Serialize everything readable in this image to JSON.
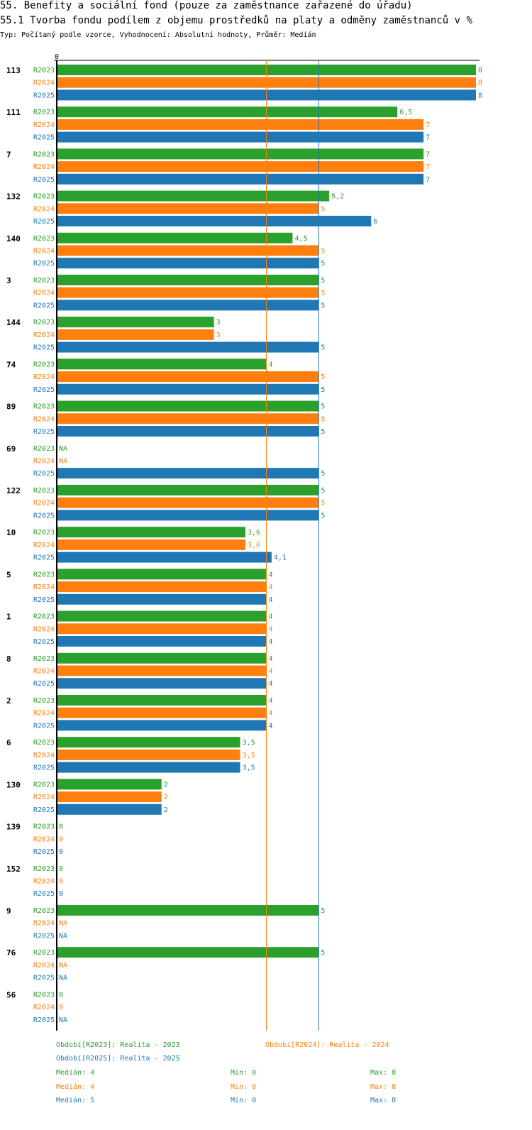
{
  "header": {
    "title": "55. Benefity a sociální fond (pouze za zaměstnance zařazené do úřadu)",
    "subtitle": "55.1 Tvorba fondu podílem z objemu prostředků na platy a odměny zaměstnanců v %",
    "meta": "Typ: Počítaný podle vzorce, Vyhodnocení: Absolutní hodnoty, Průměr: Medián"
  },
  "colors": {
    "R2023": "#2ca02c",
    "R2024": "#ff7f0e",
    "R2025": "#1f77b4"
  },
  "chart_data": {
    "type": "bar",
    "orientation": "horizontal",
    "axis_zero_label": "0",
    "xlim": [
      0,
      8
    ],
    "series_names": [
      "R2023",
      "R2024",
      "R2025"
    ],
    "median_lines": [
      {
        "series": "R2024",
        "value": 4
      },
      {
        "series": "R2025",
        "value": 5
      }
    ],
    "categories": [
      {
        "label": "113",
        "values": [
          {
            "s": "R2023",
            "v": 8,
            "t": "8"
          },
          {
            "s": "R2024",
            "v": 8,
            "t": "8"
          },
          {
            "s": "R2025",
            "v": 8,
            "t": "8"
          }
        ]
      },
      {
        "label": "111",
        "values": [
          {
            "s": "R2023",
            "v": 6.5,
            "t": "6,5"
          },
          {
            "s": "R2024",
            "v": 7,
            "t": "7"
          },
          {
            "s": "R2025",
            "v": 7,
            "t": "7"
          }
        ]
      },
      {
        "label": "7",
        "values": [
          {
            "s": "R2023",
            "v": 7,
            "t": "7"
          },
          {
            "s": "R2024",
            "v": 7,
            "t": "7"
          },
          {
            "s": "R2025",
            "v": 7,
            "t": "7"
          }
        ]
      },
      {
        "label": "132",
        "values": [
          {
            "s": "R2023",
            "v": 5.2,
            "t": "5,2"
          },
          {
            "s": "R2024",
            "v": 5,
            "t": "5"
          },
          {
            "s": "R2025",
            "v": 6,
            "t": "6"
          }
        ]
      },
      {
        "label": "140",
        "values": [
          {
            "s": "R2023",
            "v": 4.5,
            "t": "4,5"
          },
          {
            "s": "R2024",
            "v": 5,
            "t": "5"
          },
          {
            "s": "R2025",
            "v": 5,
            "t": "5"
          }
        ]
      },
      {
        "label": "3",
        "values": [
          {
            "s": "R2023",
            "v": 5,
            "t": "5"
          },
          {
            "s": "R2024",
            "v": 5,
            "t": "5"
          },
          {
            "s": "R2025",
            "v": 5,
            "t": "5"
          }
        ]
      },
      {
        "label": "144",
        "values": [
          {
            "s": "R2023",
            "v": 3,
            "t": "3"
          },
          {
            "s": "R2024",
            "v": 3,
            "t": "3"
          },
          {
            "s": "R2025",
            "v": 5,
            "t": "5"
          }
        ]
      },
      {
        "label": "74",
        "values": [
          {
            "s": "R2023",
            "v": 4,
            "t": "4"
          },
          {
            "s": "R2024",
            "v": 5,
            "t": "5"
          },
          {
            "s": "R2025",
            "v": 5,
            "t": "5"
          }
        ]
      },
      {
        "label": "89",
        "values": [
          {
            "s": "R2023",
            "v": 5,
            "t": "5"
          },
          {
            "s": "R2024",
            "v": 5,
            "t": "5"
          },
          {
            "s": "R2025",
            "v": 5,
            "t": "5"
          }
        ]
      },
      {
        "label": "69",
        "values": [
          {
            "s": "R2023",
            "v": null,
            "t": "NA"
          },
          {
            "s": "R2024",
            "v": null,
            "t": "NA"
          },
          {
            "s": "R2025",
            "v": 5,
            "t": "5"
          }
        ]
      },
      {
        "label": "122",
        "values": [
          {
            "s": "R2023",
            "v": 5,
            "t": "5"
          },
          {
            "s": "R2024",
            "v": 5,
            "t": "5"
          },
          {
            "s": "R2025",
            "v": 5,
            "t": "5"
          }
        ]
      },
      {
        "label": "10",
        "values": [
          {
            "s": "R2023",
            "v": 3.6,
            "t": "3,6"
          },
          {
            "s": "R2024",
            "v": 3.6,
            "t": "3,6"
          },
          {
            "s": "R2025",
            "v": 4.1,
            "t": "4,1"
          }
        ]
      },
      {
        "label": "5",
        "values": [
          {
            "s": "R2023",
            "v": 4,
            "t": "4"
          },
          {
            "s": "R2024",
            "v": 4,
            "t": "4"
          },
          {
            "s": "R2025",
            "v": 4,
            "t": "4"
          }
        ]
      },
      {
        "label": "1",
        "values": [
          {
            "s": "R2023",
            "v": 4,
            "t": "4"
          },
          {
            "s": "R2024",
            "v": 4,
            "t": "4"
          },
          {
            "s": "R2025",
            "v": 4,
            "t": "4"
          }
        ]
      },
      {
        "label": "8",
        "values": [
          {
            "s": "R2023",
            "v": 4,
            "t": "4"
          },
          {
            "s": "R2024",
            "v": 4,
            "t": "4"
          },
          {
            "s": "R2025",
            "v": 4,
            "t": "4"
          }
        ]
      },
      {
        "label": "2",
        "values": [
          {
            "s": "R2023",
            "v": 4,
            "t": "4"
          },
          {
            "s": "R2024",
            "v": 4,
            "t": "4"
          },
          {
            "s": "R2025",
            "v": 4,
            "t": "4"
          }
        ]
      },
      {
        "label": "6",
        "values": [
          {
            "s": "R2023",
            "v": 3.5,
            "t": "3,5"
          },
          {
            "s": "R2024",
            "v": 3.5,
            "t": "3,5"
          },
          {
            "s": "R2025",
            "v": 3.5,
            "t": "3,5"
          }
        ]
      },
      {
        "label": "130",
        "values": [
          {
            "s": "R2023",
            "v": 2,
            "t": "2"
          },
          {
            "s": "R2024",
            "v": 2,
            "t": "2"
          },
          {
            "s": "R2025",
            "v": 2,
            "t": "2"
          }
        ]
      },
      {
        "label": "139",
        "values": [
          {
            "s": "R2023",
            "v": 0,
            "t": "0"
          },
          {
            "s": "R2024",
            "v": 0,
            "t": "0"
          },
          {
            "s": "R2025",
            "v": 0,
            "t": "0"
          }
        ]
      },
      {
        "label": "152",
        "values": [
          {
            "s": "R2023",
            "v": 0,
            "t": "0"
          },
          {
            "s": "R2024",
            "v": 0,
            "t": "0"
          },
          {
            "s": "R2025",
            "v": 0,
            "t": "0"
          }
        ]
      },
      {
        "label": "9",
        "values": [
          {
            "s": "R2023",
            "v": 5,
            "t": "5"
          },
          {
            "s": "R2024",
            "v": null,
            "t": "NA"
          },
          {
            "s": "R2025",
            "v": null,
            "t": "NA"
          }
        ]
      },
      {
        "label": "76",
        "values": [
          {
            "s": "R2023",
            "v": 5,
            "t": "5"
          },
          {
            "s": "R2024",
            "v": null,
            "t": "NA"
          },
          {
            "s": "R2025",
            "v": null,
            "t": "NA"
          }
        ]
      },
      {
        "label": "56",
        "values": [
          {
            "s": "R2023",
            "v": 0,
            "t": "0"
          },
          {
            "s": "R2024",
            "v": 0,
            "t": "0"
          },
          {
            "s": "R2025",
            "v": null,
            "t": "NA"
          }
        ]
      }
    ]
  },
  "legend": {
    "periods": {
      "R2023": "Období[R2023]: Realita - 2023",
      "R2024": "Období[R2024]: Realita - 2024",
      "R2025": "Období[R2025]: Realita - 2025"
    },
    "stats": [
      {
        "series": "R2023",
        "median": "Medián: 4",
        "min": "Min: 0",
        "max": "Max: 8"
      },
      {
        "series": "R2024",
        "median": "Medián: 4",
        "min": "Min: 0",
        "max": "Max: 8"
      },
      {
        "series": "R2025",
        "median": "Medián: 5",
        "min": "Min: 0",
        "max": "Max: 8"
      }
    ]
  }
}
